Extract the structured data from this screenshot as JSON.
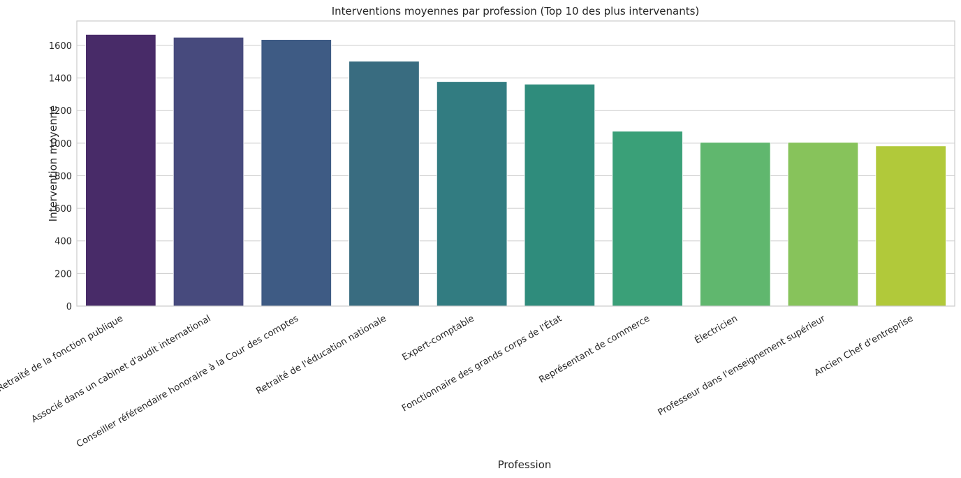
{
  "chart_data": {
    "type": "bar",
    "title": "Interventions moyennes par profession (Top 10 des plus intervenants)",
    "xlabel": "Profession",
    "ylabel": "Intervention moyenne",
    "categories": [
      "Retraité de la fonction publique",
      "Associé dans un cabinet d'audit international",
      "Conseiller référendaire honoraire à la Cour des comptes",
      "Retraité de l'éducation nationale",
      "Expert-comptable",
      "Fonctionnaire des grands corps de l'État",
      "Représentant de commerce",
      "Électricien",
      "Professeur dans l'enseignement supérieur",
      "Ancien Chef d'entreprise"
    ],
    "values": [
      1667,
      1650,
      1636,
      1503,
      1378,
      1362,
      1073,
      1005,
      1005,
      983
    ],
    "colors": [
      "#482b68",
      "#474a7d",
      "#3e5b84",
      "#396c80",
      "#327c81",
      "#2f8c7c",
      "#3aa078",
      "#60b76e",
      "#87c35b",
      "#b1c93a"
    ],
    "ylim": [
      0,
      1750
    ],
    "yticks": [
      "0",
      "200",
      "400",
      "600",
      "800",
      "1000",
      "1200",
      "1400",
      "1600"
    ],
    "grid": "horizontal",
    "legend": "none"
  }
}
